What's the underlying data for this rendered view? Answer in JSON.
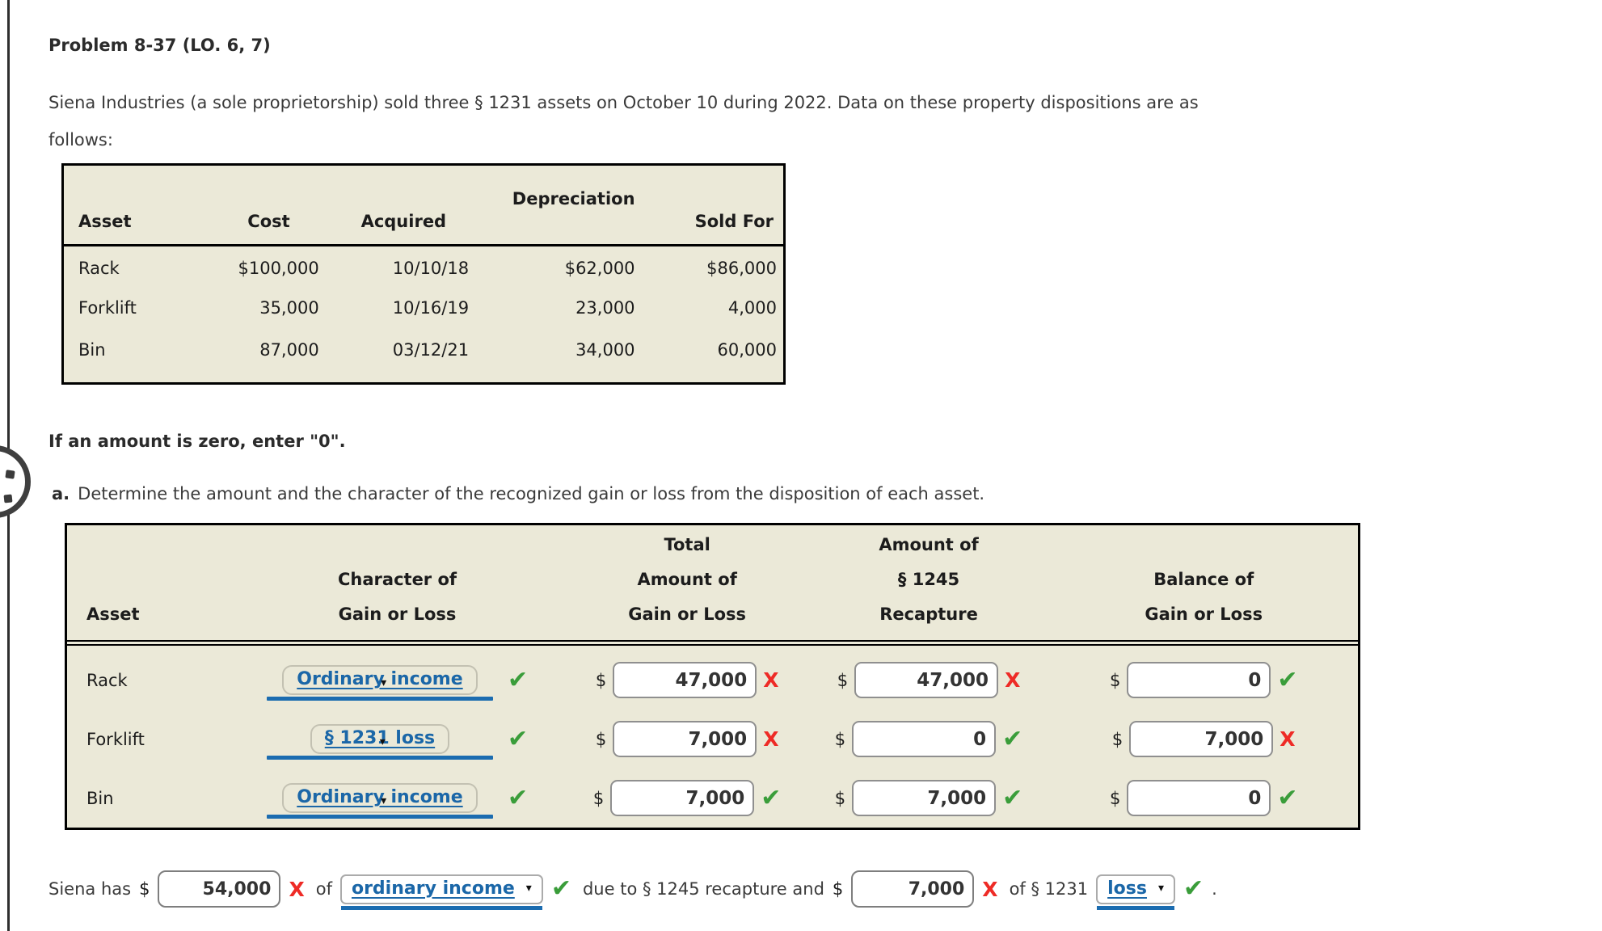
{
  "problem": {
    "title": "Problem 8-37 (LO. 6, 7)",
    "intro_line1": "Siena Industries (a sole proprietorship) sold three § 1231 assets on October 10 during 2022. Data on these property dispositions are as",
    "intro_line2": "follows:"
  },
  "data_table": {
    "headers": [
      "Asset",
      "Cost",
      "Acquired",
      "Depreciation",
      "Sold For"
    ],
    "rows": [
      [
        "Rack",
        "$100,000",
        "10/10/18",
        "$62,000",
        "$86,000"
      ],
      [
        "Forklift",
        "35,000",
        "10/16/19",
        "23,000",
        "4,000"
      ],
      [
        "Bin",
        "87,000",
        "03/12/21",
        "34,000",
        "60,000"
      ]
    ]
  },
  "instruction": "If an amount is zero, enter \"0\".",
  "part_a": {
    "label": "a.",
    "text": "Determine the amount and the character of the recognized gain or loss from the disposition of each asset."
  },
  "answer_table": {
    "headers": {
      "asset": "Asset",
      "character": [
        "Character of",
        "Gain or Loss"
      ],
      "total": [
        "Total",
        "Amount of",
        "Gain or Loss"
      ],
      "recapture": [
        "Amount of",
        "§ 1245",
        "Recapture"
      ],
      "balance": [
        "Balance of",
        "Gain or Loss"
      ]
    },
    "currency": "$",
    "rows": [
      {
        "asset": "Rack",
        "character": "Ordinary income",
        "total": "47,000",
        "recapture": "47,000",
        "balance": "0",
        "marks": {
          "character": "correct",
          "total": "incorrect",
          "recapture": "incorrect",
          "balance": "correct"
        }
      },
      {
        "asset": "Forklift",
        "character": "§ 1231 loss",
        "total": "7,000",
        "recapture": "0",
        "balance": "7,000",
        "marks": {
          "character": "correct",
          "total": "incorrect",
          "recapture": "correct",
          "balance": "incorrect"
        }
      },
      {
        "asset": "Bin",
        "character": "Ordinary income",
        "total": "7,000",
        "recapture": "7,000",
        "balance": "0",
        "marks": {
          "character": "correct",
          "total": "correct",
          "recapture": "correct",
          "balance": "correct"
        }
      }
    ]
  },
  "summary": {
    "lead": "Siena has",
    "currency": "$",
    "amount1": "54,000",
    "amount1_mark": "incorrect",
    "of1": "of",
    "select1": "ordinary income",
    "select1_mark": "correct",
    "middle": "due to § 1245 recapture and",
    "amount2": "7,000",
    "amount2_mark": "incorrect",
    "of2": "of § 1231",
    "select2": "loss",
    "select2_mark": "correct",
    "period": "."
  },
  "icons": {
    "check": "✔",
    "cross": "X",
    "caret": "▾"
  },
  "colors": {
    "table_bg": "#ebe9d8",
    "link_blue": "#1b67a8",
    "underline_blue": "#1b6cb0",
    "correct_green": "#3a9d3a",
    "incorrect_red": "#ee2b26",
    "table_border": "#000000",
    "input_border": "#8f8f8f"
  }
}
